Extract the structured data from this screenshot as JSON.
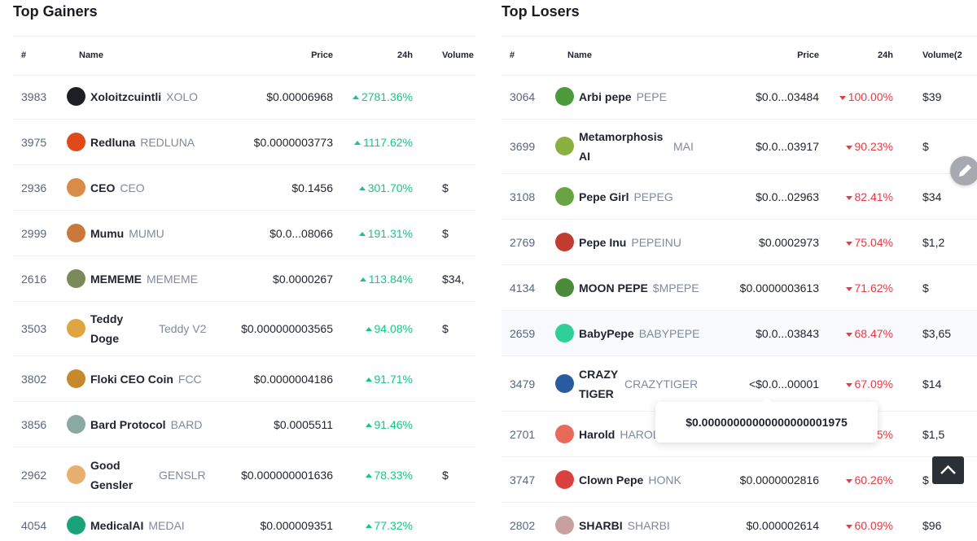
{
  "gainers": {
    "title": "Top Gainers",
    "columns": [
      "#",
      "Name",
      "Price",
      "24h",
      "Volume"
    ],
    "rows": [
      {
        "rank": "3983",
        "name": "Xoloitzcuintli",
        "symbol": "XOLO",
        "price": "$0.00006968",
        "change": "2781.36%"
      },
      {
        "rank": "3975",
        "name": "Redluna",
        "symbol": "REDLUNA",
        "price": "$0.0000003773",
        "change": "1117.62%"
      },
      {
        "rank": "2936",
        "name": "CEO",
        "symbol": "CEO",
        "price": "$0.1456",
        "change": "301.70%",
        "volume": "$"
      },
      {
        "rank": "2999",
        "name": "Mumu",
        "symbol": "MUMU",
        "price": "$0.0...08066",
        "change": "191.31%",
        "volume": "$"
      },
      {
        "rank": "2616",
        "name": "MEMEME",
        "symbol": "MEMEME",
        "price": "$0.0000267",
        "change": "113.84%",
        "volume": "$34,"
      },
      {
        "rank": "3503",
        "name": "Teddy Doge",
        "symbol": "Teddy V2",
        "price": "$0.000000003565",
        "change": "94.08%",
        "volume": "$"
      },
      {
        "rank": "3802",
        "name": "Floki CEO Coin",
        "symbol": "FCC",
        "price": "$0.0000004186",
        "change": "91.71%"
      },
      {
        "rank": "3856",
        "name": "Bard Protocol",
        "symbol": "BARD",
        "price": "$0.0005511",
        "change": "91.46%"
      },
      {
        "rank": "2962",
        "name": "Good Gensler",
        "symbol": "GENSLR",
        "price": "$0.000000001636",
        "change": "78.33%",
        "volume": "$"
      },
      {
        "rank": "4054",
        "name": "MedicalAI",
        "symbol": "MEDAI",
        "price": "$0.000009351",
        "change": "77.32%"
      }
    ]
  },
  "losers": {
    "title": "Top Losers",
    "columns": [
      "#",
      "Name",
      "Price",
      "24h",
      "Volume(2"
    ],
    "rows": [
      {
        "rank": "3064",
        "name": "Arbi pepe",
        "symbol": "PEPE",
        "price": "$0.0...03484",
        "change": "100.00%",
        "volume": "$39"
      },
      {
        "rank": "3699",
        "name": "Metamorphosis AI",
        "symbol": "MAI",
        "price": "$0.0...03917",
        "change": "90.23%",
        "volume": "$"
      },
      {
        "rank": "3108",
        "name": "Pepe Girl",
        "symbol": "PEPEG",
        "price": "$0.0...02963",
        "change": "82.41%",
        "volume": "$34"
      },
      {
        "rank": "2769",
        "name": "Pepe Inu",
        "symbol": "PEPEINU",
        "price": "$0.0002973",
        "change": "75.04%",
        "volume": "$1,2"
      },
      {
        "rank": "4134",
        "name": "MOON PEPE",
        "symbol": "$MPEPE",
        "price": "$0.0000003613",
        "change": "71.62%",
        "volume": "$"
      },
      {
        "rank": "2659",
        "name": "BabyPepe",
        "symbol": "BABYPEPE",
        "price": "$0.0...03843",
        "change": "68.47%",
        "volume": "$3,65"
      },
      {
        "rank": "3479",
        "name": "CRAZY TIGER",
        "symbol": "CRAZYTIGER",
        "price": "<$0.0...00001",
        "change": "67.09%",
        "volume": "$14"
      },
      {
        "rank": "2701",
        "name": "Harold",
        "symbol": "HAROLD",
        "price": "",
        "change": "5%",
        "volume": "$1,5"
      },
      {
        "rank": "3747",
        "name": "Clown Pepe",
        "symbol": "HONK",
        "price": "$0.0000002816",
        "change": "60.26%",
        "volume": "$"
      },
      {
        "rank": "2802",
        "name": "SHARBI",
        "symbol": "SHARBI",
        "price": "$0.000002614",
        "change": "60.09%",
        "volume": "$96"
      }
    ]
  },
  "tooltip": "$0.00000000000000000001975"
}
